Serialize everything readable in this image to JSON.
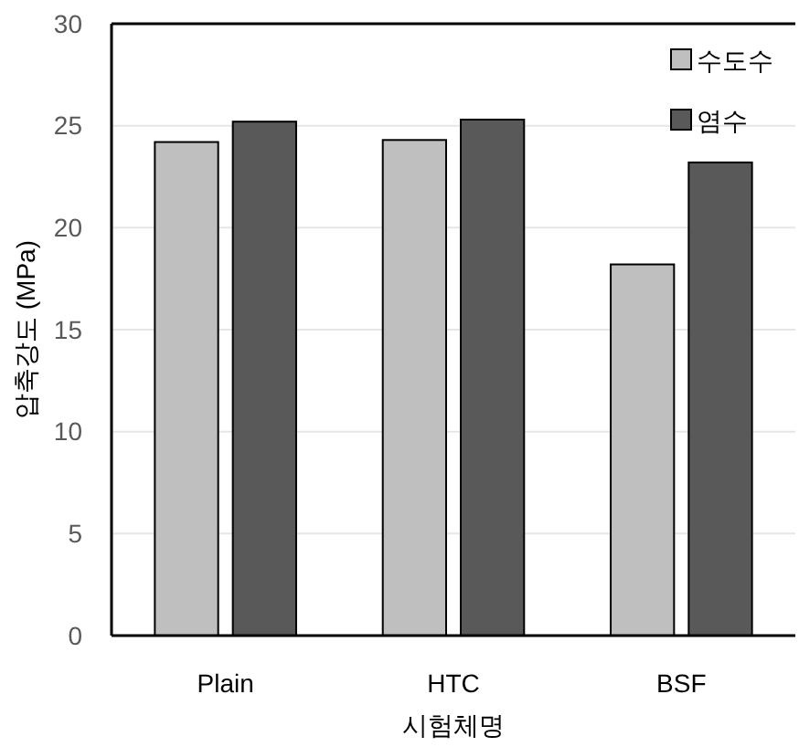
{
  "chart_data": {
    "type": "bar",
    "xlabel": "시험체명",
    "ylabel": "압축강도 (MPa)",
    "categories": [
      "Plain",
      "HTC",
      "BSF"
    ],
    "series": [
      {
        "name": "수도수",
        "color": "#bfbfbf",
        "values": [
          24.2,
          24.3,
          18.2
        ]
      },
      {
        "name": "염수",
        "color": "#595959",
        "values": [
          25.2,
          25.3,
          23.2
        ]
      }
    ],
    "ylim": [
      0,
      30
    ],
    "yticks": [
      0,
      5,
      10,
      15,
      20,
      25,
      30
    ],
    "grid": "y",
    "legend": "top right"
  }
}
